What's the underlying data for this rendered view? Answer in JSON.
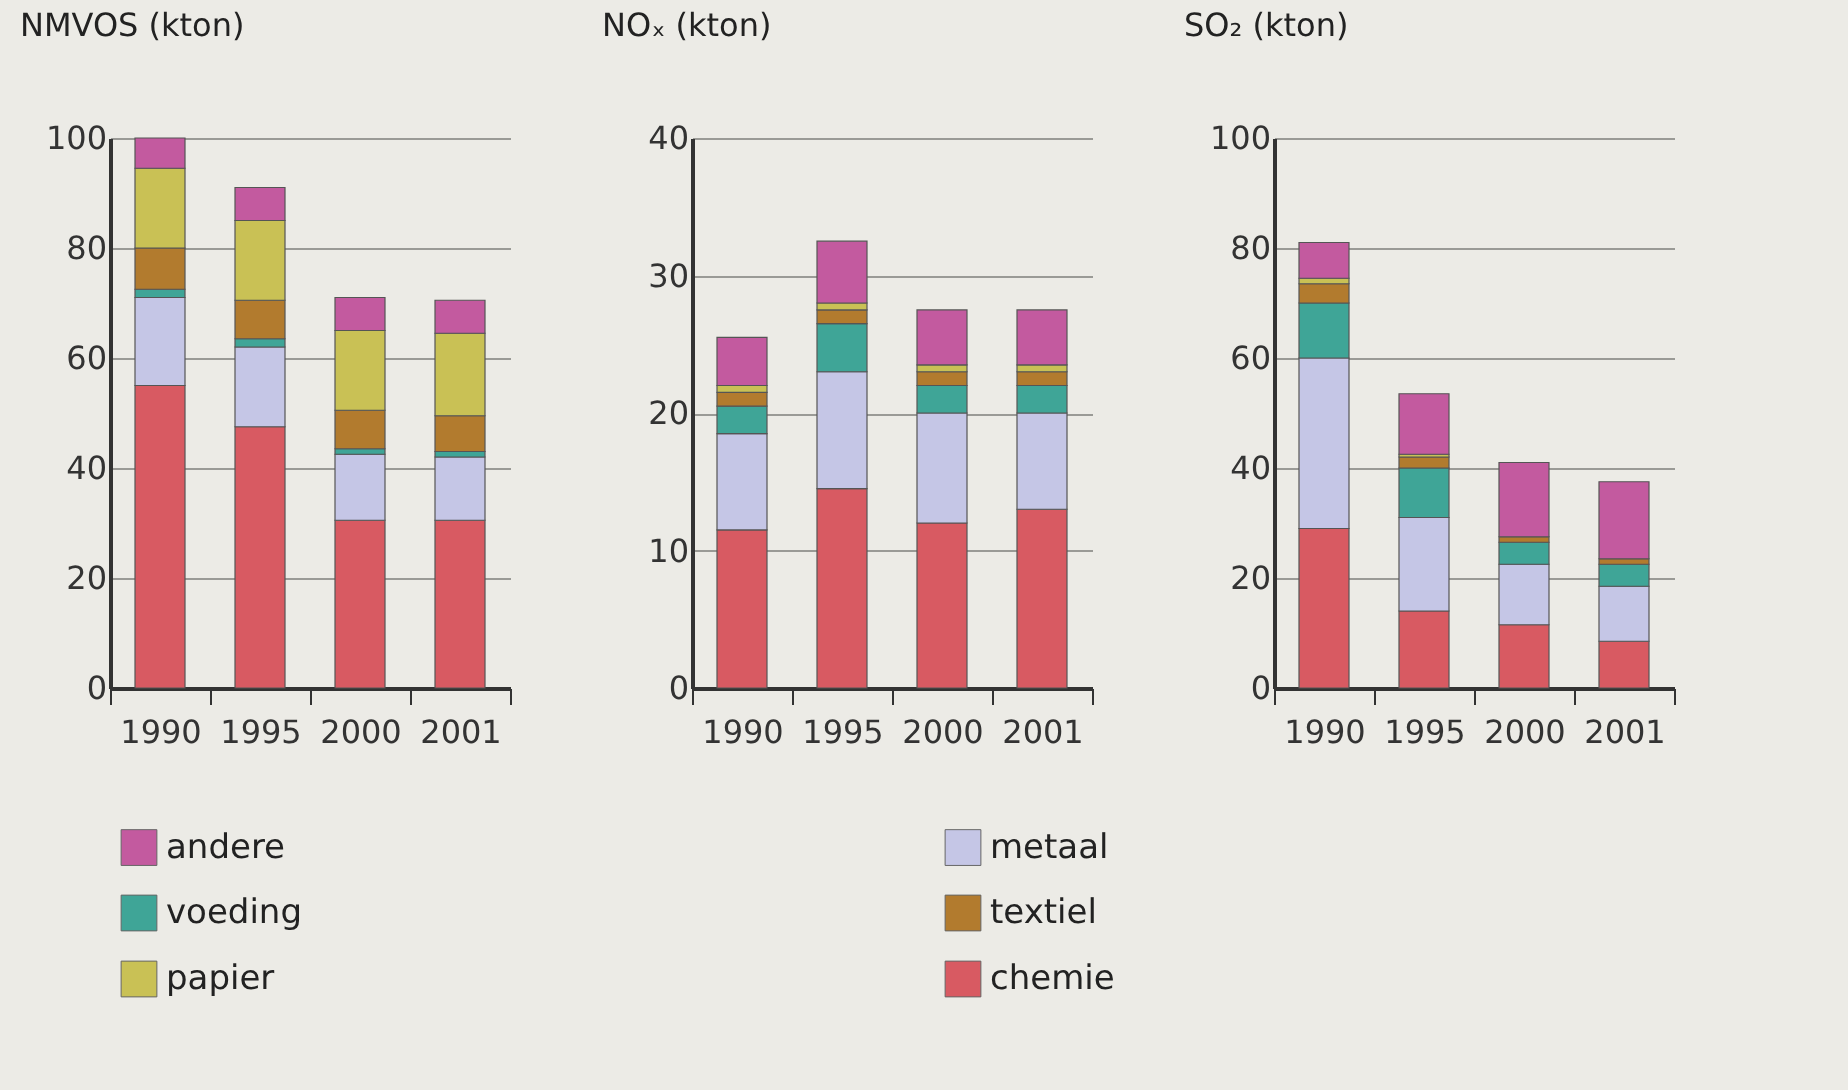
{
  "chart_data": [
    {
      "type": "bar",
      "title": "NMVOS (kton)",
      "stacked": true,
      "categories": [
        "1990",
        "1995",
        "2000",
        "2001"
      ],
      "ylim": [
        0,
        100
      ],
      "yticks": [
        0,
        20,
        40,
        60,
        80,
        100
      ],
      "grid": "y",
      "legend": "bottom",
      "series": [
        {
          "name": "chemie",
          "color": "#d85a62",
          "values": [
            55,
            47.5,
            30.5,
            30.5
          ]
        },
        {
          "name": "metaal",
          "color": "#c5c6e6",
          "values": [
            16,
            14.5,
            12,
            11.5
          ]
        },
        {
          "name": "voeding",
          "color": "#3fa597",
          "values": [
            1.5,
            1.5,
            1,
            1
          ]
        },
        {
          "name": "textiel",
          "color": "#b27b2e",
          "values": [
            7.5,
            7,
            7,
            6.5
          ]
        },
        {
          "name": "papier",
          "color": "#c9c155",
          "values": [
            14.5,
            14.5,
            14.5,
            15
          ]
        },
        {
          "name": "andere",
          "color": "#c35a9f",
          "values": [
            5.5,
            6,
            6,
            6
          ]
        }
      ]
    },
    {
      "type": "bar",
      "title": "NOₓ (kton)",
      "stacked": true,
      "categories": [
        "1990",
        "1995",
        "2000",
        "2001"
      ],
      "ylim": [
        0,
        40
      ],
      "yticks": [
        0,
        10,
        20,
        30,
        40
      ],
      "grid": "y",
      "series": [
        {
          "name": "chemie",
          "color": "#d85a62",
          "values": [
            11.5,
            14.5,
            12,
            13
          ]
        },
        {
          "name": "metaal",
          "color": "#c5c6e6",
          "values": [
            7,
            8.5,
            8,
            7
          ]
        },
        {
          "name": "voeding",
          "color": "#3fa597",
          "values": [
            2,
            3.5,
            2,
            2
          ]
        },
        {
          "name": "textiel",
          "color": "#b27b2e",
          "values": [
            1,
            1,
            1,
            1
          ]
        },
        {
          "name": "papier",
          "color": "#c9c155",
          "values": [
            0.5,
            0.5,
            0.5,
            0.5
          ]
        },
        {
          "name": "andere",
          "color": "#c35a9f",
          "values": [
            3.5,
            4.5,
            4,
            4
          ]
        }
      ]
    },
    {
      "type": "bar",
      "title": "SO₂ (kton)",
      "stacked": true,
      "categories": [
        "1990",
        "1995",
        "2000",
        "2001"
      ],
      "ylim": [
        0,
        100
      ],
      "yticks": [
        0,
        20,
        40,
        60,
        80,
        100
      ],
      "grid": "y",
      "series": [
        {
          "name": "chemie",
          "color": "#d85a62",
          "values": [
            29,
            14,
            11.5,
            8.5
          ]
        },
        {
          "name": "metaal",
          "color": "#c5c6e6",
          "values": [
            31,
            17,
            11,
            10
          ]
        },
        {
          "name": "voeding",
          "color": "#3fa597",
          "values": [
            10,
            9,
            4,
            4
          ]
        },
        {
          "name": "textiel",
          "color": "#b27b2e",
          "values": [
            3.5,
            2,
            1,
            1
          ]
        },
        {
          "name": "papier",
          "color": "#c9c155",
          "values": [
            1,
            0.5,
            0,
            0
          ]
        },
        {
          "name": "andere",
          "color": "#c35a9f",
          "values": [
            6.5,
            11,
            13.5,
            14
          ]
        }
      ]
    }
  ]
}
